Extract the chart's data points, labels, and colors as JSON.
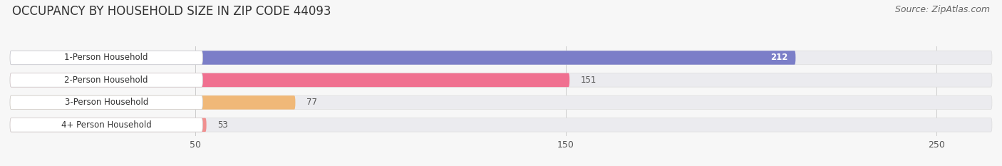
{
  "title": "OCCUPANCY BY HOUSEHOLD SIZE IN ZIP CODE 44093",
  "source": "Source: ZipAtlas.com",
  "categories": [
    "1-Person Household",
    "2-Person Household",
    "3-Person Household",
    "4+ Person Household"
  ],
  "values": [
    212,
    151,
    77,
    53
  ],
  "bar_colors": [
    "#7b7ec8",
    "#f07090",
    "#f0b878",
    "#f09090"
  ],
  "xlim": [
    0,
    265
  ],
  "xticks": [
    50,
    150,
    250
  ],
  "background_color": "#f7f7f7",
  "bar_bg_color": "#e8e8ee",
  "title_fontsize": 12,
  "source_fontsize": 9,
  "bar_height": 0.62,
  "figsize": [
    14.06,
    2.33
  ],
  "dpi": 100
}
